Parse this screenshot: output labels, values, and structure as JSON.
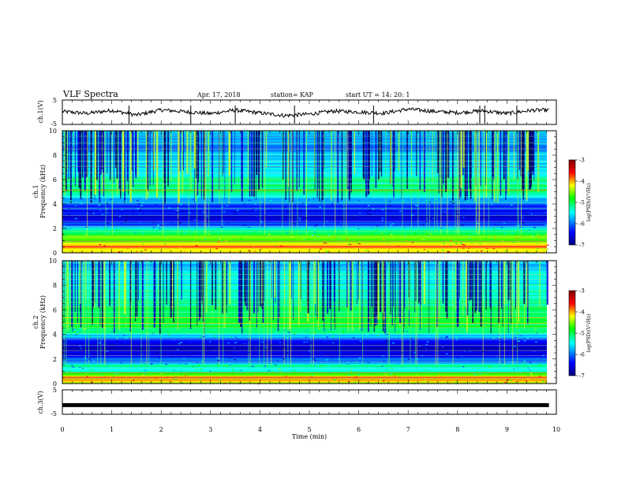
{
  "header": {
    "title": "VLF Spectra",
    "date": "Apr. 17, 2018",
    "station": "station= KAP",
    "start": "start  UT =   14: 20: 1"
  },
  "colors": {
    "background": "#ffffff",
    "axes": "#000000",
    "colormap": [
      "#000080",
      "#0000ff",
      "#00ffff",
      "#00ff00",
      "#ffff00",
      "#ff0000",
      "#800000"
    ]
  },
  "chart_data": [
    {
      "type": "line",
      "panel": "ch1-waveform",
      "ylabel": "ch.1(V)",
      "ylim": [
        -5,
        5
      ],
      "yticks": [
        "5",
        "-5"
      ],
      "xlim": [
        0,
        10
      ],
      "note": "noisy waveform roughly between -2 and 2 V",
      "x": [
        0,
        0.5,
        1,
        1.5,
        2,
        2.5,
        3,
        3.5,
        4,
        4.5,
        5,
        5.5,
        6,
        6.5,
        7,
        7.5,
        8,
        8.5,
        9,
        9.5,
        9.8
      ],
      "y": [
        0.3,
        -0.5,
        0.8,
        -1.2,
        1.0,
        0.2,
        -0.6,
        0.9,
        -0.3,
        -1.4,
        -0.8,
        0.5,
        0.1,
        -0.4,
        1.3,
        0.4,
        -0.2,
        0.6,
        -0.5,
        0.8,
        0.9
      ]
    },
    {
      "type": "heatmap",
      "panel": "ch1-spectrogram",
      "ylabel_lines": [
        "ch.1",
        "Frequency  (kHz)"
      ],
      "ylim": [
        0,
        10
      ],
      "yticks": [
        "0",
        "2",
        "4",
        "6",
        "8",
        "10"
      ],
      "xlim": [
        0,
        9.85
      ],
      "colorbar": {
        "label": "log(PSD)(V²/Hz)",
        "range": [
          -7,
          -3
        ],
        "ticks": [
          "-3",
          "-4",
          "-5",
          "-6",
          "-7"
        ]
      },
      "freq_profile_khz": [
        0.1,
        0.5,
        1.0,
        1.5,
        2.0,
        2.5,
        3.0,
        3.5,
        4.0,
        4.5,
        5.0,
        5.5,
        6.0,
        7.0,
        8.0,
        9.0,
        10.0
      ],
      "log_psd_profile": [
        -4.2,
        -4.0,
        -4.6,
        -4.8,
        -5.6,
        -6.4,
        -6.6,
        -6.4,
        -6.0,
        -5.6,
        -5.0,
        -5.2,
        -5.3,
        -5.6,
        -5.8,
        -5.8,
        -5.8
      ]
    },
    {
      "type": "heatmap",
      "panel": "ch2-spectrogram",
      "ylabel_lines": [
        "ch.2",
        "Frequency  (kHz)"
      ],
      "ylim": [
        0,
        10
      ],
      "yticks": [
        "0",
        "2",
        "4",
        "6",
        "8",
        "10"
      ],
      "xlim": [
        0,
        9.85
      ],
      "colorbar": {
        "label": "log(PSD)(V²/Hz)",
        "range": [
          -7,
          -3
        ],
        "ticks": [
          "-3",
          "-4",
          "-5",
          "-6",
          "-7"
        ]
      },
      "freq_profile_khz": [
        0.1,
        0.5,
        1.0,
        1.5,
        2.0,
        2.5,
        3.0,
        3.5,
        4.0,
        4.5,
        5.0,
        5.5,
        6.0,
        7.0,
        8.0,
        9.0,
        10.0
      ],
      "log_psd_profile": [
        -4.2,
        -4.2,
        -5.2,
        -5.4,
        -6.2,
        -6.6,
        -6.6,
        -6.2,
        -5.4,
        -5.0,
        -5.0,
        -5.2,
        -5.2,
        -5.2,
        -5.4,
        -5.6,
        -5.6
      ]
    },
    {
      "type": "line",
      "panel": "ch3-waveform",
      "ylabel": "ch.3(V)",
      "ylim": [
        -5,
        5
      ],
      "yticks": [
        "5",
        "-5"
      ],
      "xlim": [
        0,
        10
      ],
      "x": [
        0,
        9.85
      ],
      "y": [
        -1.3,
        -1.3
      ]
    }
  ],
  "xaxis": {
    "label": "Time  (min)",
    "ticks": [
      "0",
      "1",
      "2",
      "3",
      "4",
      "5",
      "6",
      "7",
      "8",
      "9",
      "10"
    ]
  }
}
